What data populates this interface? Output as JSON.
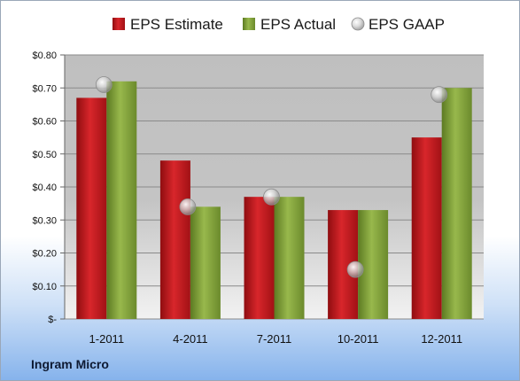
{
  "company": "Ingram Micro",
  "colors": {
    "estimate": "#c8181e",
    "actual": "#86a83d",
    "gaap": "#c9c9c9"
  },
  "chart_data": {
    "type": "bar",
    "categories": [
      "1-2011",
      "4-2011",
      "7-2011",
      "10-2011",
      "12-2011"
    ],
    "series": [
      {
        "name": "EPS Estimate",
        "kind": "bar",
        "values": [
          0.67,
          0.48,
          0.37,
          0.33,
          0.55
        ]
      },
      {
        "name": "EPS Actual",
        "kind": "bar",
        "values": [
          0.72,
          0.34,
          0.37,
          0.33,
          0.7
        ]
      },
      {
        "name": "EPS GAAP",
        "kind": "marker",
        "values": [
          0.71,
          0.34,
          0.37,
          0.15,
          0.68
        ]
      }
    ],
    "ylim": [
      0,
      0.8
    ],
    "yticks": [
      0,
      0.1,
      0.2,
      0.3,
      0.4,
      0.5,
      0.6,
      0.7,
      0.8
    ],
    "ytick_labels": [
      "$-",
      "$0.10",
      "$0.20",
      "$0.30",
      "$0.40",
      "$0.50",
      "$0.60",
      "$0.70",
      "$0.80"
    ],
    "legend_position": "top",
    "grid": true
  }
}
